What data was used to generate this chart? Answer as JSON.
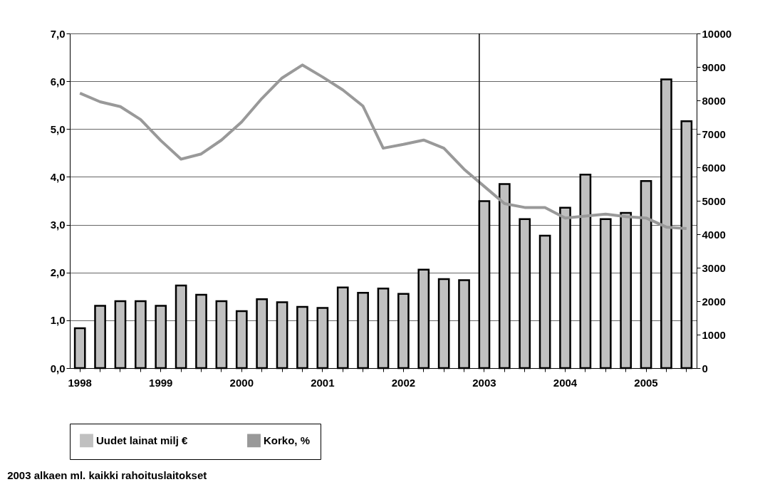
{
  "chart_data": {
    "type": "bar",
    "categories": [
      "1998",
      null,
      null,
      null,
      "1999",
      null,
      null,
      null,
      "2000",
      null,
      null,
      null,
      "2001",
      null,
      null,
      null,
      "2002",
      null,
      null,
      null,
      "2003",
      null,
      null,
      null,
      "2004",
      null,
      null,
      null,
      "2005",
      null,
      null
    ],
    "series": [
      {
        "name": "Uudet lainat milj €",
        "axis": "y2",
        "color": "#c0c0c0",
        "values": [
          1190,
          1860,
          2000,
          2000,
          1860,
          2470,
          2190,
          2000,
          1700,
          2060,
          1970,
          1830,
          1800,
          2410,
          2250,
          2380,
          2220,
          2940,
          2660,
          2630,
          4990,
          5500,
          4450,
          3960,
          4790,
          5780,
          4450,
          4640,
          5590,
          8630,
          7380
        ]
      },
      {
        "name": "Korko, %",
        "type": "line",
        "color": "#999999",
        "values": [
          5.75,
          5.57,
          5.47,
          5.2,
          4.76,
          4.37,
          4.48,
          4.77,
          5.15,
          5.64,
          6.07,
          6.34,
          6.09,
          5.82,
          5.48,
          4.6,
          4.68,
          4.77,
          4.6,
          4.16,
          3.8,
          3.44,
          3.36,
          3.36,
          3.14,
          3.18,
          3.22,
          3.17,
          3.14,
          2.95,
          2.92
        ]
      }
    ],
    "ylim": [
      0,
      7
    ],
    "yticks": [
      {
        "value": 0,
        "label": "0,0"
      },
      {
        "value": 1,
        "label": "1,0"
      },
      {
        "value": 2,
        "label": "2,0"
      },
      {
        "value": 3,
        "label": "3,0"
      },
      {
        "value": 4,
        "label": "4,0"
      },
      {
        "value": 5,
        "label": "5,0"
      },
      {
        "value": 6,
        "label": "6,0"
      },
      {
        "value": 7,
        "label": "7,0"
      }
    ],
    "y2lim": [
      0,
      10000
    ],
    "y2ticks": [
      0,
      1000,
      2000,
      3000,
      4000,
      5000,
      6000,
      7000,
      8000,
      9000,
      10000
    ],
    "ref_lines": [
      {
        "axis": "x",
        "value": "2003",
        "color": "#000000"
      }
    ],
    "grid": "y",
    "legend": "bottom",
    "annotations": [
      "2003 alkaen ml. kaikki rahoituslaitokset"
    ]
  }
}
